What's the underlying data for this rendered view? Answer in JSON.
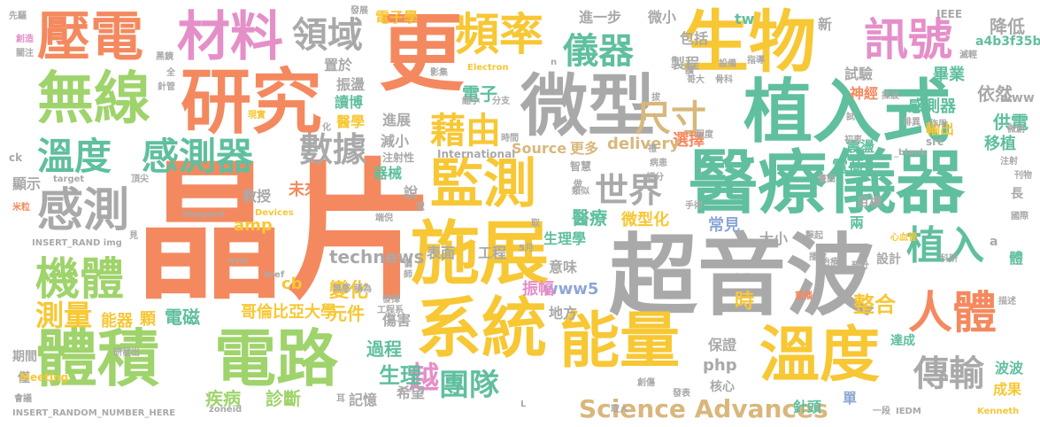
{
  "palette": {
    "orange": "#f4895f",
    "green": "#9fd36b",
    "yellow": "#f7c734",
    "gray": "#a9a9a9",
    "teal": "#5fbf9f",
    "pink": "#e58fc9",
    "blue": "#8ea6d6",
    "tan": "#d9b77c"
  },
  "words": [
    "晶片",
    "超音波",
    "醫療儀器",
    "植入式",
    "微型",
    "生物",
    "更",
    "研究",
    "施展",
    "系統",
    "體積",
    "電路",
    "能量",
    "溫度",
    "無線",
    "壓電",
    "材料",
    "監測",
    "頻率",
    "人體",
    "訊號",
    "感測",
    "機體",
    "溫度",
    "感測器",
    "數據",
    "藉由",
    "儀器",
    "領域",
    "尺寸",
    "世界",
    "植入",
    "測量",
    "傳輸",
    "團隊",
    "越",
    "Science Advances",
    "technews",
    "哥倫比亞大學",
    "變化",
    "整合",
    "元件",
    "生理",
    "過程",
    "疾病",
    "診斷",
    "能器",
    "電磁",
    "顆",
    "amp",
    "www5",
    "cb",
    "php",
    "生理學",
    "醫療",
    "微型化",
    "表面",
    "工程",
    "地方",
    "大小",
    "常見",
    "時",
    "選擇",
    "delivery",
    "Source",
    "更多",
    "器械",
    "未來",
    "教授",
    "說",
    "意味",
    "振幅",
    "傷害",
    "希望",
    "記憶",
    "保證",
    "核心",
    "達成",
    "波波",
    "成果",
    "針頭",
    "單",
    "兩",
    "設計",
    "目標",
    "供電",
    "移植",
    "依然",
    "感測器",
    "輸出",
    "神經",
    "畢業",
    "震盪",
    "電荷",
    "試驗",
    "製程",
    "包括",
    "進一步",
    "微小",
    "電子學",
    "電子",
    "振盪",
    "讀博",
    "醫學",
    "減小",
    "置於",
    "進展",
    "注射性",
    "International",
    "智慧",
    "IEEE",
    "tw",
    "www",
    "a4b3f35b",
    "新",
    "降低",
    "體",
    "長",
    "src",
    "顯示",
    "期間",
    "僅",
    "INSERT_RANDOM_NUMBER_HERE",
    "Meeting",
    "Shepard",
    "Devices",
    "INSERT_RAND img",
    "target",
    "ck",
    "Kenneth",
    "IEDM",
    "avw",
    "href",
    "Electron",
    "zoneid",
    "_blank",
    "先驅",
    "創造",
    "關注",
    "黑鏡",
    "全",
    "針管",
    "現實",
    "打造",
    "頂尖",
    "米粒",
    "會議",
    "研發出",
    "發展",
    "化",
    "耳",
    "工程系",
    "無感",
    "稱為",
    "發揮",
    "偏",
    "影集",
    "縮小",
    "分支",
    "時間",
    "禮",
    "病患",
    "細分",
    "取人",
    "創傷",
    "發表",
    "一段",
    "播放",
    "畫面",
    "刊物",
    "國際",
    "科研",
    "心血管",
    "預計",
    "治療",
    "紀錄",
    "重播",
    "描述",
    "指導",
    "哥大",
    "骨科",
    "程度",
    "初衷",
    "作用",
    "微創",
    "注射",
    "排異",
    "設備",
    "n",
    "L",
    "a",
    "5月",
    "端倪",
    "類似",
    "手術",
    "擊起",
    "見",
    "做",
    "試",
    "讀",
    "揉波",
    "滅輕",
    "拔",
    "師",
    "取",
    "眾"
  ]
}
